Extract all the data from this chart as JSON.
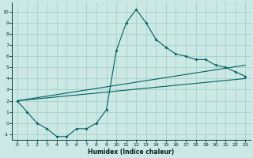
{
  "xlabel": "Humidex (Indice chaleur)",
  "bg_color": "#cce8e4",
  "grid_color": "#a8d4ce",
  "line_color": "#006060",
  "xlim": [
    -0.5,
    23.5
  ],
  "ylim": [
    -1.5,
    10.8
  ],
  "xticks": [
    0,
    1,
    2,
    3,
    4,
    5,
    6,
    7,
    8,
    9,
    10,
    11,
    12,
    13,
    14,
    15,
    16,
    17,
    18,
    19,
    20,
    21,
    22,
    23
  ],
  "yticks": [
    -1,
    0,
    1,
    2,
    3,
    4,
    5,
    6,
    7,
    8,
    9,
    10
  ],
  "curve1_x": [
    0,
    1,
    2,
    3,
    4,
    5,
    6,
    7,
    8,
    9,
    10,
    11,
    12,
    13,
    14,
    15,
    16,
    17,
    18,
    19,
    20,
    21,
    22,
    23
  ],
  "curve1_y": [
    2.0,
    1.0,
    0.0,
    -0.5,
    -1.2,
    -1.2,
    -0.5,
    -0.5,
    0.0,
    1.2,
    6.5,
    9.0,
    10.2,
    9.0,
    7.5,
    6.8,
    6.2,
    6.0,
    5.7,
    5.7,
    5.2,
    5.0,
    4.6,
    4.2
  ],
  "curve1_marker_x": [
    0,
    1,
    2,
    3,
    4,
    5,
    6,
    7,
    8,
    9,
    10,
    11,
    12,
    13,
    14,
    15,
    16,
    17,
    18,
    19,
    20,
    21,
    22,
    23
  ],
  "curve1_marker_y": [
    2.0,
    1.0,
    0.0,
    -0.5,
    -1.2,
    -1.2,
    -0.5,
    -0.5,
    0.0,
    1.2,
    6.5,
    9.0,
    10.2,
    9.0,
    7.5,
    6.8,
    6.2,
    6.0,
    5.7,
    5.7,
    5.2,
    5.0,
    4.6,
    4.2
  ],
  "curve2_x": [
    0,
    23
  ],
  "curve2_y": [
    2.0,
    5.2
  ],
  "curve3_x": [
    0,
    23
  ],
  "curve3_y": [
    2.0,
    4.0
  ]
}
